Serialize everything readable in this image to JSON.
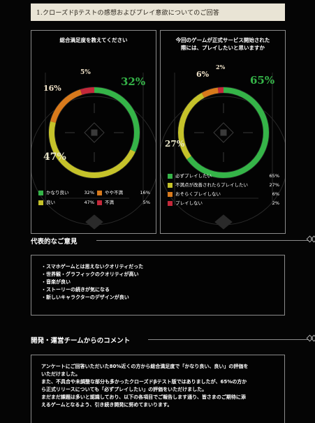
{
  "title": "1.クローズドβテストの感想およびプレイ意欲についてのご回答",
  "left_chart": {
    "title_lines": [
      "総合満足度を教えてください"
    ],
    "labels": {
      "a": "32%",
      "b": "47%",
      "c": "16%",
      "d": "5%"
    },
    "legend": [
      {
        "label": "かなり良い",
        "value": "32%",
        "color": "#35b448"
      },
      {
        "label": "やや不満",
        "value": "16%",
        "color": "#d87a1c"
      },
      {
        "label": "良い",
        "value": "47%",
        "color": "#c5c22a"
      },
      {
        "label": "不満",
        "value": "5%",
        "color": "#c4283a"
      }
    ]
  },
  "right_chart": {
    "title_lines": [
      "今回のゲームが正式サービス開始された",
      "際には、プレイしたいと思いますか"
    ],
    "labels": {
      "a": "65%",
      "b": "27%",
      "c": "6%",
      "d": "2%"
    },
    "legend": [
      {
        "label": "必ずプレイしたい",
        "value": "65%",
        "color": "#35b448"
      },
      {
        "label": "不満点が改善されたらプレイしたい",
        "value": "27%",
        "color": "#c5c22a"
      },
      {
        "label": "おそらくプレイしない",
        "value": "6%",
        "color": "#d87a1c"
      },
      {
        "label": "プレイしない",
        "value": "2%",
        "color": "#c4283a"
      }
    ]
  },
  "chart_data": [
    {
      "type": "pie",
      "title": "総合満足度を教えてください",
      "categories": [
        "かなり良い",
        "良い",
        "やや不満",
        "不満"
      ],
      "values": [
        32,
        47,
        16,
        5
      ],
      "colors": [
        "#35b448",
        "#c5c22a",
        "#d87a1c",
        "#c4283a"
      ]
    },
    {
      "type": "pie",
      "title": "今回のゲームが正式サービス開始された際には、プレイしたいと思いますか",
      "categories": [
        "必ずプレイしたい",
        "不満点が改善されたらプレイしたい",
        "おそらくプレイしない",
        "プレイしない"
      ],
      "values": [
        65,
        27,
        6,
        2
      ],
      "colors": [
        "#35b448",
        "#c5c22a",
        "#d87a1c",
        "#c4283a"
      ]
    }
  ],
  "opinions_heading": "代表的なご意見",
  "opinions": [
    "・スマホゲームとは思えないクオリティだった",
    "・世界観・グラフィックのクオリティが高い",
    "・音楽が良い",
    "・ストーリーの続きが気になる",
    "・新しいキャラクターのデザインが良い"
  ],
  "comment_heading": "開発・運営チームからのコメント",
  "comment_lines": [
    "アンケートにご回答いただいた80%近くの方から総合満足度で「かなり良い、良い」の評価を",
    "いただけました。",
    "また、不具合や未調整な部分も多かったクローズドβテスト版ではありましたが、65%の方か",
    "ら正式リリースについても「必ずプレイしたい」の評価をいただけました。",
    "まだまだ課題は多いと認識しており、以下の各項目でご報告します通り、皆さまのご期待に添",
    "えるゲームとなるよう、引き続き開発に努めてまいります。"
  ]
}
